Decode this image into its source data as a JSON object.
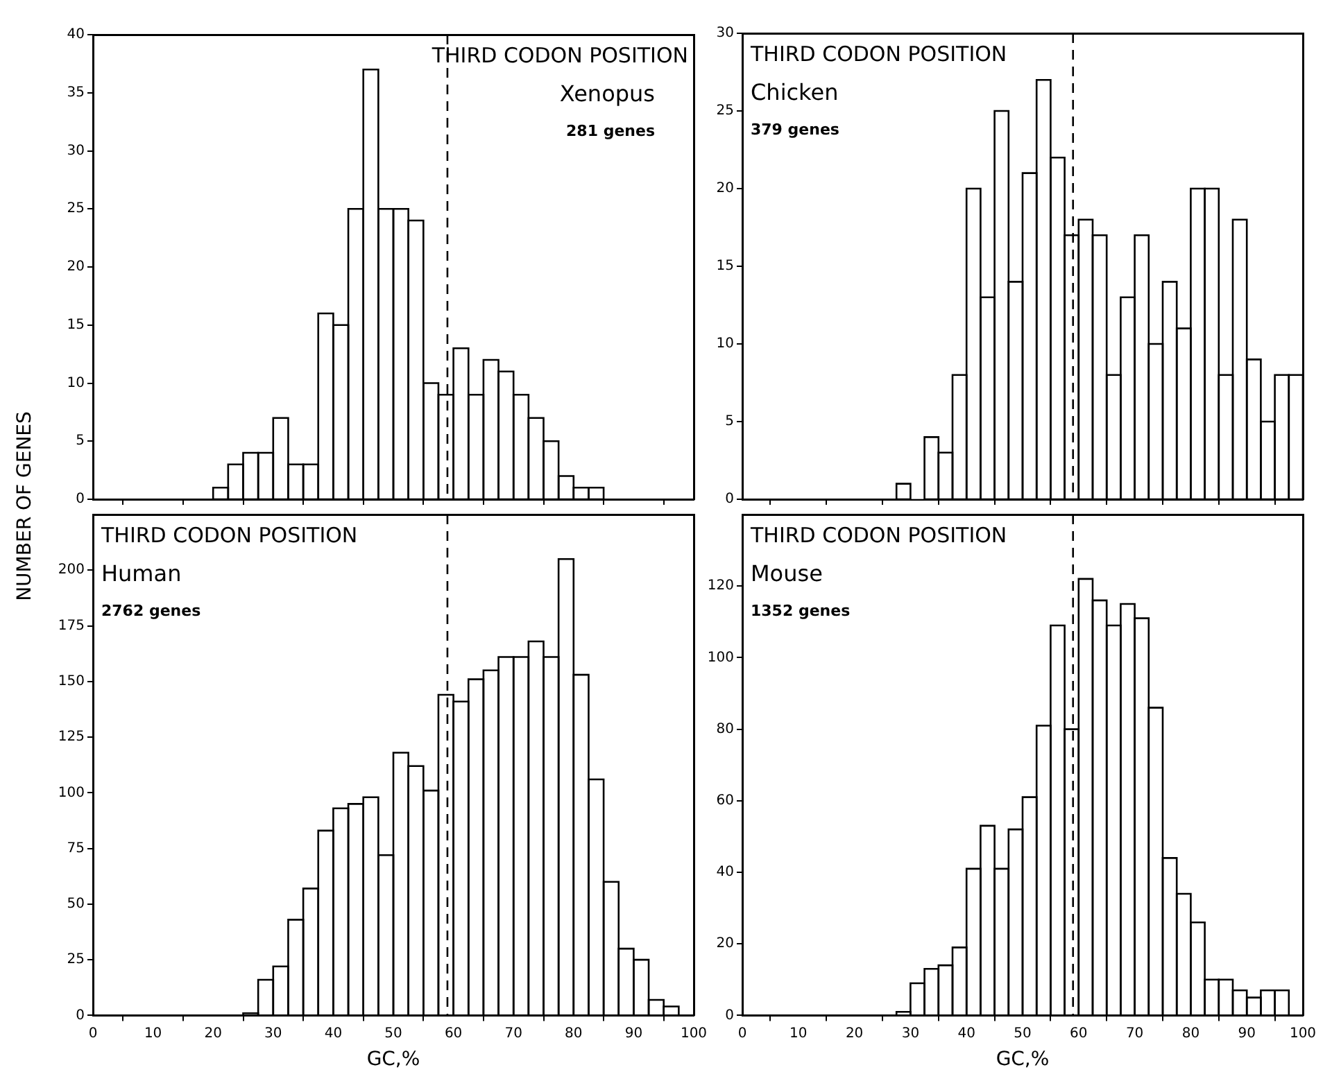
{
  "chart_data": [
    {
      "type": "histogram",
      "ylabel": "NUMBER OF GENES",
      "annotations": [
        "THIRD CODON POSITION",
        "Xenopus",
        "281 genes"
      ],
      "bins": [
        20,
        22.5,
        25,
        27.5,
        30,
        32.5,
        35,
        37.5,
        40,
        42.5,
        45,
        47.5,
        50,
        52.5,
        55,
        57.5,
        60,
        62.5,
        65,
        67.5,
        70,
        72.5,
        75,
        77.5,
        80,
        82.5,
        85
      ],
      "values": [
        1,
        3,
        4,
        4,
        7,
        3,
        3,
        16,
        15,
        25,
        37,
        25,
        25,
        24,
        10,
        9,
        13,
        9,
        12,
        11,
        9,
        7,
        5,
        2,
        1,
        1
      ],
      "color": "#ffffff",
      "xlim": [
        0,
        100
      ],
      "xticks": [
        0,
        10,
        20,
        30,
        40,
        50,
        60,
        70,
        80,
        90,
        100
      ],
      "ylim": [
        0,
        40
      ],
      "yticks": [
        0,
        5,
        10,
        15,
        20,
        25,
        30,
        35,
        40
      ],
      "ref_lines": [
        {
          "axis": "x",
          "value": 59,
          "line_style": "dashed"
        }
      ],
      "tick_labels": "y",
      "grid": false,
      "legend": false
    },
    {
      "type": "histogram",
      "annotations": [
        "THIRD CODON POSITION",
        "Chicken",
        "379 genes"
      ],
      "bins": [
        27.5,
        30,
        32.5,
        35,
        37.5,
        40,
        42.5,
        45,
        47.5,
        50,
        52.5,
        55,
        57.5,
        60,
        62.5,
        65,
        67.5,
        70,
        72.5,
        75,
        77.5,
        80,
        82.5,
        85,
        87.5,
        90,
        92.5,
        95,
        97.5,
        100
      ],
      "values": [
        1,
        0,
        4,
        3,
        8,
        20,
        13,
        25,
        14,
        21,
        27,
        22,
        17,
        18,
        17,
        8,
        13,
        17,
        10,
        14,
        11,
        20,
        20,
        8,
        18,
        9,
        5,
        8,
        8
      ],
      "color": "#ffffff",
      "xlim": [
        0,
        100
      ],
      "xticks": [
        0,
        10,
        20,
        30,
        40,
        50,
        60,
        70,
        80,
        90,
        100
      ],
      "ylim": [
        0,
        30
      ],
      "yticks": [
        0,
        5,
        10,
        15,
        20,
        25,
        30
      ],
      "ref_lines": [
        {
          "axis": "x",
          "value": 59,
          "line_style": "dashed"
        }
      ],
      "tick_labels": "y",
      "grid": false,
      "legend": false
    },
    {
      "type": "histogram",
      "xlabel": "GC,%",
      "annotations": [
        "THIRD CODON POSITION",
        "Human",
        "2762 genes"
      ],
      "bins": [
        25,
        27.5,
        30,
        32.5,
        35,
        37.5,
        40,
        42.5,
        45,
        47.5,
        50,
        52.5,
        55,
        57.5,
        60,
        62.5,
        65,
        67.5,
        70,
        72.5,
        75,
        77.5,
        80,
        82.5,
        85,
        87.5,
        90,
        92.5,
        95,
        97.5
      ],
      "values": [
        1,
        16,
        22,
        43,
        57,
        83,
        93,
        95,
        98,
        72,
        118,
        112,
        101,
        144,
        141,
        151,
        155,
        161,
        161,
        168,
        161,
        205,
        153,
        106,
        60,
        30,
        25,
        7,
        4
      ],
      "color": "#ffffff",
      "xlim": [
        0,
        100
      ],
      "xticks": [
        0,
        10,
        20,
        30,
        40,
        50,
        60,
        70,
        80,
        90,
        100
      ],
      "ylim": [
        0,
        225
      ],
      "yticks": [
        0,
        25,
        50,
        75,
        100,
        125,
        150,
        175,
        200
      ],
      "ref_lines": [
        {
          "axis": "x",
          "value": 59,
          "line_style": "dashed"
        }
      ],
      "grid": false,
      "legend": false
    },
    {
      "type": "histogram",
      "xlabel": "GC,%",
      "annotations": [
        "THIRD CODON POSITION",
        "Mouse",
        "1352 genes"
      ],
      "bins": [
        27.5,
        30,
        32.5,
        35,
        37.5,
        40,
        42.5,
        45,
        47.5,
        50,
        52.5,
        55,
        57.5,
        60,
        62.5,
        65,
        67.5,
        70,
        72.5,
        75,
        77.5,
        80,
        82.5,
        85,
        87.5,
        90,
        92.5,
        95,
        97.5
      ],
      "values": [
        1,
        9,
        13,
        14,
        19,
        41,
        53,
        41,
        52,
        61,
        81,
        109,
        80,
        122,
        116,
        109,
        115,
        111,
        86,
        44,
        34,
        26,
        10,
        10,
        7,
        5,
        7,
        7
      ],
      "color": "#ffffff",
      "xlim": [
        0,
        100
      ],
      "xticks": [
        0,
        10,
        20,
        30,
        40,
        50,
        60,
        70,
        80,
        90,
        100
      ],
      "ylim": [
        0,
        140
      ],
      "yticks": [
        0,
        20,
        40,
        60,
        80,
        100,
        120
      ],
      "ref_lines": [
        {
          "axis": "x",
          "value": 59,
          "line_style": "dashed"
        }
      ],
      "grid": false,
      "legend": false
    }
  ]
}
